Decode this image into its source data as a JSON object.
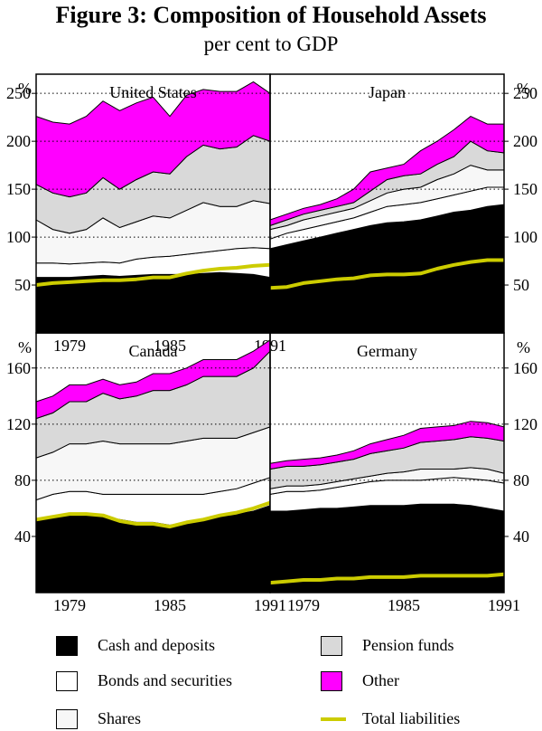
{
  "title": "Figure 3: Composition of Household Assets",
  "subtitle": "per cent to GDP",
  "colors": {
    "cash": "#000000",
    "bonds": "#ffffff",
    "shares": "#f7f7f7",
    "pension": "#d9d9d9",
    "other": "#ff00ff",
    "liabilities": "#cccc00"
  },
  "legend": [
    {
      "key": "cash",
      "label": "Cash and deposits"
    },
    {
      "key": "pension",
      "label": "Pension funds"
    },
    {
      "key": "bonds",
      "label": "Bonds and securities"
    },
    {
      "key": "other",
      "label": "Other"
    },
    {
      "key": "shares",
      "label": "Shares"
    },
    {
      "key": "liabilities",
      "label": "Total liabilities"
    }
  ],
  "chart_data": [
    {
      "type": "area",
      "title": "United States",
      "unit": "%",
      "ylim": [
        0,
        270
      ],
      "yticks": [
        50,
        100,
        150,
        200,
        250
      ],
      "grid": "dotted",
      "axis_side": "left",
      "x": [
        1977,
        1978,
        1979,
        1980,
        1981,
        1982,
        1983,
        1984,
        1985,
        1986,
        1987,
        1988,
        1989,
        1990,
        1991
      ],
      "xticks": [
        "1979",
        "1985",
        "1991"
      ],
      "series": [
        {
          "name": "Cash and deposits",
          "key": "cash",
          "cumulative": [
            58,
            58,
            58,
            59,
            60,
            59,
            60,
            61,
            61,
            61,
            62,
            63,
            62,
            61,
            58
          ]
        },
        {
          "name": "Bonds and securities",
          "key": "bonds",
          "cumulative": [
            73,
            73,
            72,
            73,
            74,
            73,
            77,
            79,
            80,
            82,
            84,
            86,
            88,
            89,
            88
          ]
        },
        {
          "name": "Shares",
          "key": "shares",
          "cumulative": [
            118,
            108,
            104,
            108,
            120,
            110,
            116,
            122,
            120,
            128,
            136,
            132,
            132,
            138,
            135
          ]
        },
        {
          "name": "Pension funds",
          "key": "pension",
          "cumulative": [
            155,
            146,
            142,
            146,
            162,
            150,
            160,
            168,
            166,
            184,
            196,
            192,
            194,
            206,
            200
          ]
        },
        {
          "name": "Other",
          "key": "other",
          "cumulative": [
            226,
            220,
            218,
            226,
            242,
            232,
            240,
            246,
            226,
            248,
            254,
            252,
            252,
            262,
            250
          ]
        },
        {
          "name": "Total liabilities",
          "key": "liabilities",
          "line": [
            50,
            52,
            53,
            54,
            55,
            55,
            56,
            58,
            58,
            62,
            65,
            67,
            68,
            70,
            71
          ]
        }
      ]
    },
    {
      "type": "area",
      "title": "Japan",
      "unit": "%",
      "ylim": [
        0,
        270
      ],
      "yticks": [
        50,
        100,
        150,
        200,
        250
      ],
      "grid": "dotted",
      "axis_side": "right",
      "x": [
        1977,
        1978,
        1979,
        1980,
        1981,
        1982,
        1983,
        1984,
        1985,
        1986,
        1987,
        1988,
        1989,
        1990,
        1991
      ],
      "xticks": [],
      "series": [
        {
          "name": "Cash and deposits",
          "key": "cash",
          "cumulative": [
            88,
            92,
            96,
            100,
            104,
            108,
            112,
            115,
            116,
            118,
            122,
            126,
            128,
            132,
            134
          ]
        },
        {
          "name": "Bonds and securities",
          "key": "bonds",
          "cumulative": [
            98,
            104,
            108,
            112,
            116,
            120,
            126,
            132,
            134,
            136,
            140,
            144,
            148,
            152,
            152
          ]
        },
        {
          "name": "Shares",
          "key": "shares",
          "cumulative": [
            108,
            112,
            118,
            122,
            126,
            130,
            138,
            146,
            150,
            152,
            160,
            166,
            175,
            170,
            170
          ]
        },
        {
          "name": "Pension funds",
          "key": "pension",
          "cumulative": [
            112,
            118,
            124,
            128,
            132,
            136,
            148,
            160,
            164,
            166,
            176,
            184,
            200,
            190,
            188
          ]
        },
        {
          "name": "Other",
          "key": "other",
          "cumulative": [
            118,
            124,
            130,
            134,
            140,
            150,
            168,
            172,
            176,
            190,
            200,
            212,
            226,
            218,
            218
          ]
        },
        {
          "name": "Total liabilities",
          "key": "liabilities",
          "line": [
            47,
            48,
            52,
            54,
            56,
            57,
            60,
            61,
            61,
            62,
            67,
            71,
            74,
            76,
            76
          ]
        }
      ]
    },
    {
      "type": "area",
      "title": "Canada",
      "unit": "%",
      "ylim": [
        0,
        185
      ],
      "yticks": [
        40,
        80,
        120,
        160
      ],
      "grid": "dotted",
      "axis_side": "left",
      "x": [
        1977,
        1978,
        1979,
        1980,
        1981,
        1982,
        1983,
        1984,
        1985,
        1986,
        1987,
        1988,
        1989,
        1990,
        1991
      ],
      "xticks": [
        "1979",
        "1985",
        "1991"
      ],
      "series": [
        {
          "name": "Cash and deposits",
          "key": "cash",
          "cumulative": [
            52,
            54,
            56,
            56,
            54,
            52,
            50,
            50,
            48,
            50,
            52,
            54,
            56,
            58,
            62
          ]
        },
        {
          "name": "Bonds and securities",
          "key": "bonds",
          "cumulative": [
            66,
            70,
            72,
            72,
            70,
            70,
            70,
            70,
            70,
            70,
            70,
            72,
            74,
            78,
            82
          ]
        },
        {
          "name": "Shares",
          "key": "shares",
          "cumulative": [
            96,
            100,
            106,
            106,
            108,
            106,
            106,
            106,
            106,
            108,
            110,
            110,
            110,
            114,
            118
          ]
        },
        {
          "name": "Pension funds",
          "key": "pension",
          "cumulative": [
            124,
            128,
            136,
            136,
            142,
            138,
            140,
            144,
            144,
            148,
            154,
            154,
            154,
            160,
            172
          ]
        },
        {
          "name": "Other",
          "key": "other",
          "cumulative": [
            136,
            140,
            148,
            148,
            152,
            148,
            150,
            156,
            156,
            160,
            166,
            166,
            166,
            172,
            180
          ]
        },
        {
          "name": "Total liabilities",
          "key": "liabilities",
          "line": [
            52,
            54,
            56,
            56,
            55,
            51,
            49,
            49,
            47,
            50,
            52,
            55,
            57,
            60,
            64
          ]
        }
      ]
    },
    {
      "type": "area",
      "title": "Germany",
      "unit": "%",
      "ylim": [
        0,
        185
      ],
      "yticks": [
        40,
        80,
        120,
        160
      ],
      "grid": "dotted",
      "axis_side": "right",
      "x": [
        1977,
        1978,
        1979,
        1980,
        1981,
        1982,
        1983,
        1984,
        1985,
        1986,
        1987,
        1988,
        1989,
        1990,
        1991
      ],
      "xticks": [
        "1979",
        "1985",
        "1991"
      ],
      "series": [
        {
          "name": "Cash and deposits",
          "key": "cash",
          "cumulative": [
            58,
            58,
            59,
            60,
            60,
            61,
            62,
            62,
            62,
            63,
            63,
            63,
            62,
            60,
            58
          ]
        },
        {
          "name": "Bonds and securities",
          "key": "bonds",
          "cumulative": [
            70,
            72,
            72,
            73,
            75,
            77,
            79,
            80,
            80,
            80,
            81,
            82,
            81,
            80,
            78
          ]
        },
        {
          "name": "Shares",
          "key": "shares",
          "cumulative": [
            74,
            76,
            76,
            77,
            79,
            81,
            83,
            85,
            86,
            88,
            88,
            88,
            89,
            88,
            85
          ]
        },
        {
          "name": "Pension funds",
          "key": "pension",
          "cumulative": [
            88,
            90,
            90,
            91,
            93,
            95,
            99,
            101,
            103,
            107,
            108,
            109,
            111,
            110,
            108
          ]
        },
        {
          "name": "Other",
          "key": "other",
          "cumulative": [
            92,
            94,
            95,
            96,
            98,
            101,
            106,
            109,
            112,
            117,
            118,
            119,
            122,
            121,
            118
          ]
        },
        {
          "name": "Total liabilities",
          "key": "liabilities",
          "line": [
            7,
            8,
            9,
            9,
            10,
            10,
            11,
            11,
            11,
            12,
            12,
            12,
            12,
            12,
            13
          ]
        }
      ]
    }
  ]
}
